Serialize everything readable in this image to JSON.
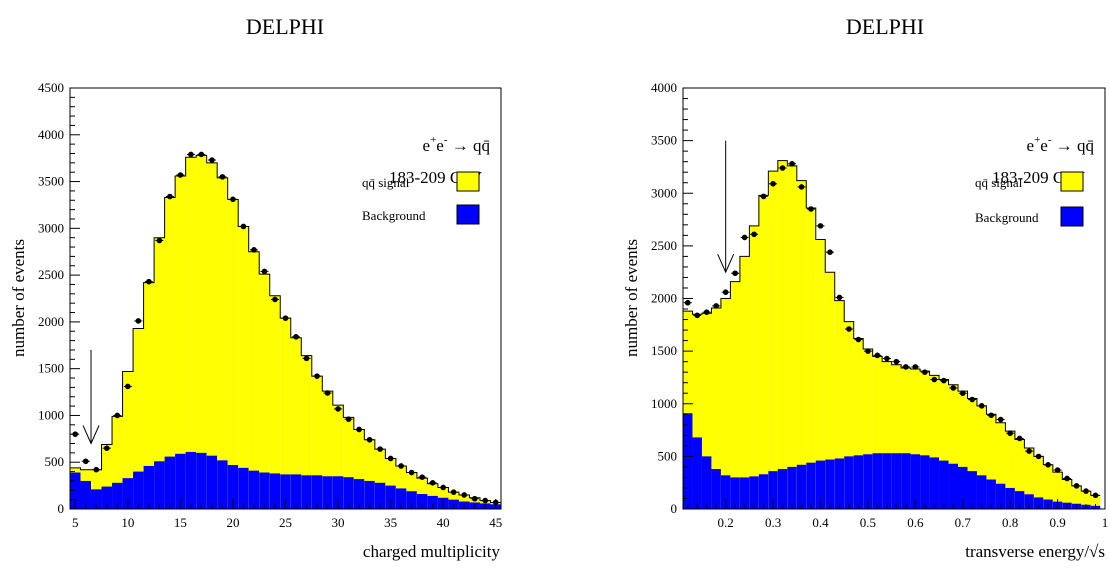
{
  "chart_data": [
    {
      "type": "bar",
      "title": "DELPHI",
      "xlabel": "charged multiplicity",
      "ylabel": "number of events",
      "process": {
        "base": "e",
        "sup1": "+",
        "sup2": "-",
        "arrow": "→",
        "final": "qq̄"
      },
      "energy": "183-209 GeV",
      "legend": [
        "qq̄ signal",
        "Background"
      ],
      "legend_placement": "right",
      "xlim": [
        4.5,
        45.5
      ],
      "ylim": [
        0,
        4500
      ],
      "x_ticks": [
        5,
        10,
        15,
        20,
        25,
        30,
        35,
        40,
        45
      ],
      "y_ticks": [
        0,
        500,
        1000,
        1500,
        2000,
        2500,
        3000,
        3500,
        4000,
        4500
      ],
      "bin_width": 1,
      "bin_centers": [
        5,
        6,
        7,
        8,
        9,
        10,
        11,
        12,
        13,
        14,
        15,
        16,
        17,
        18,
        19,
        20,
        21,
        22,
        23,
        24,
        25,
        26,
        27,
        28,
        29,
        30,
        31,
        32,
        33,
        34,
        35,
        36,
        37,
        38,
        39,
        40,
        41,
        42,
        43,
        44,
        45
      ],
      "total_mc": [
        440,
        420,
        420,
        690,
        990,
        1470,
        1930,
        2420,
        2900,
        3330,
        3560,
        3760,
        3780,
        3700,
        3540,
        3310,
        3020,
        2750,
        2510,
        2280,
        2040,
        1830,
        1640,
        1420,
        1260,
        1110,
        980,
        850,
        740,
        640,
        540,
        460,
        390,
        330,
        270,
        230,
        180,
        150,
        120,
        90,
        70
      ],
      "background": [
        390,
        300,
        210,
        240,
        280,
        330,
        400,
        460,
        510,
        560,
        590,
        610,
        600,
        570,
        520,
        470,
        440,
        410,
        390,
        380,
        370,
        370,
        360,
        360,
        350,
        350,
        340,
        320,
        300,
        280,
        250,
        220,
        190,
        160,
        140,
        120,
        100,
        80,
        70,
        60,
        50
      ],
      "data_points": [
        800,
        510,
        420,
        650,
        1000,
        1310,
        2010,
        2430,
        2870,
        3340,
        3570,
        3790,
        3790,
        3730,
        3550,
        3310,
        3020,
        2770,
        2540,
        2240,
        2040,
        1840,
        1610,
        1420,
        1240,
        1070,
        960,
        850,
        740,
        640,
        540,
        460,
        390,
        340,
        280,
        230,
        180,
        150,
        110,
        90,
        70
      ],
      "cut_arrow": {
        "x": 6.5,
        "y_from": 1700,
        "y_to": 700
      },
      "colors": {
        "signal": "#ffff00",
        "background": "#0000ff",
        "line": "#000000"
      }
    },
    {
      "type": "bar",
      "title": "DELPHI",
      "xlabel": "transverse energy/√s",
      "ylabel": "number of events",
      "process": {
        "base": "e",
        "sup1": "+",
        "sup2": "-",
        "arrow": "→",
        "final": "qq̄"
      },
      "energy": "183-209 GeV",
      "legend": [
        "qq̄ signal",
        "Background"
      ],
      "legend_placement": "right",
      "xlim": [
        0.11,
        1.0
      ],
      "ylim": [
        0,
        4000
      ],
      "x_ticks": [
        0.2,
        0.3,
        0.4,
        0.5,
        0.6,
        0.7,
        0.8,
        0.9,
        1
      ],
      "x_tick_labels": [
        "0.2",
        "0.3",
        "0.4",
        "0.5",
        "0.6",
        "0.7",
        "0.8",
        "0.9",
        "1"
      ],
      "y_ticks": [
        0,
        500,
        1000,
        1500,
        2000,
        2500,
        3000,
        3500,
        4000
      ],
      "bin_width": 0.02,
      "bin_centers": [
        0.12,
        0.14,
        0.16,
        0.18,
        0.2,
        0.22,
        0.24,
        0.26,
        0.28,
        0.3,
        0.32,
        0.34,
        0.36,
        0.38,
        0.4,
        0.42,
        0.44,
        0.46,
        0.48,
        0.5,
        0.52,
        0.54,
        0.56,
        0.58,
        0.6,
        0.62,
        0.64,
        0.66,
        0.68,
        0.7,
        0.72,
        0.74,
        0.76,
        0.78,
        0.8,
        0.82,
        0.84,
        0.86,
        0.88,
        0.9,
        0.92,
        0.94,
        0.96,
        0.98
      ],
      "total_mc": [
        1880,
        1850,
        1860,
        1910,
        2000,
        2160,
        2400,
        2690,
        2980,
        3210,
        3310,
        3260,
        3120,
        2860,
        2560,
        2250,
        1980,
        1780,
        1620,
        1520,
        1450,
        1400,
        1370,
        1340,
        1330,
        1310,
        1270,
        1230,
        1180,
        1120,
        1050,
        980,
        900,
        820,
        740,
        660,
        580,
        500,
        420,
        350,
        280,
        220,
        170,
        130
      ],
      "background": [
        910,
        680,
        500,
        380,
        320,
        300,
        300,
        310,
        330,
        360,
        380,
        400,
        420,
        440,
        460,
        470,
        480,
        500,
        510,
        520,
        530,
        530,
        530,
        530,
        520,
        510,
        490,
        460,
        430,
        400,
        360,
        320,
        280,
        240,
        200,
        170,
        140,
        110,
        90,
        70,
        60,
        50,
        40,
        30
      ],
      "data_points": [
        1960,
        1840,
        1870,
        1930,
        2060,
        2240,
        2580,
        2610,
        2970,
        3090,
        3240,
        3280,
        3060,
        2850,
        2690,
        2440,
        2010,
        1710,
        1610,
        1500,
        1460,
        1430,
        1400,
        1350,
        1350,
        1300,
        1230,
        1220,
        1150,
        1100,
        1040,
        980,
        890,
        850,
        720,
        670,
        550,
        500,
        420,
        370,
        290,
        220,
        170,
        130
      ],
      "cut_arrow": {
        "x": 0.2,
        "y_from": 3500,
        "y_to": 2250
      },
      "colors": {
        "signal": "#ffff00",
        "background": "#0000ff",
        "line": "#000000"
      }
    }
  ]
}
